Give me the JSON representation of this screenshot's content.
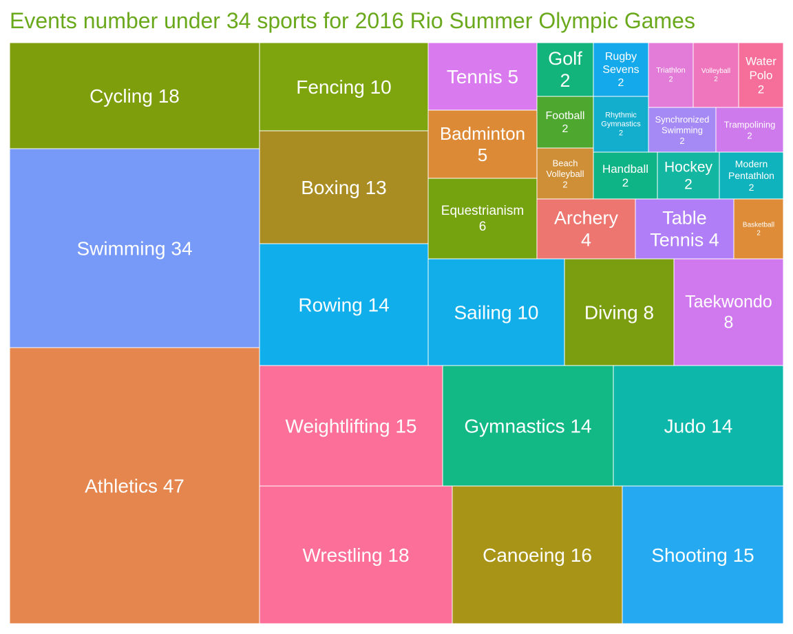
{
  "title": "Events number under 34 sports for 2016 Rio Summer Olympic Games",
  "colors": {
    "title": "#6aa81c",
    "background": "#ffffff",
    "label": "#ffffff"
  },
  "chart_data": {
    "type": "treemap",
    "title": "Events number under 34 sports for 2016 Rio Summer Olympic Games",
    "items": [
      {
        "sport": "Athletics",
        "events": 47,
        "color": "#e4864e"
      },
      {
        "sport": "Swimming",
        "events": 34,
        "color": "#779af8"
      },
      {
        "sport": "Cycling",
        "events": 18,
        "color": "#7e9e0c"
      },
      {
        "sport": "Wrestling",
        "events": 18,
        "color": "#fb6f98"
      },
      {
        "sport": "Canoeing",
        "events": 16,
        "color": "#a89518"
      },
      {
        "sport": "Shooting",
        "events": 15,
        "color": "#25aaf2"
      },
      {
        "sport": "Weightlifting",
        "events": 15,
        "color": "#fb6f98"
      },
      {
        "sport": "Gymnastics",
        "events": 14,
        "color": "#12b985"
      },
      {
        "sport": "Judo",
        "events": 14,
        "color": "#0db8ab"
      },
      {
        "sport": "Rowing",
        "events": 14,
        "color": "#10aeea"
      },
      {
        "sport": "Boxing",
        "events": 13,
        "color": "#a98d23"
      },
      {
        "sport": "Fencing",
        "events": 10,
        "color": "#7ea50e"
      },
      {
        "sport": "Sailing",
        "events": 10,
        "color": "#12aeea"
      },
      {
        "sport": "Diving",
        "events": 8,
        "color": "#7b9d10"
      },
      {
        "sport": "Taekwondo",
        "events": 8,
        "color": "#d078ee"
      },
      {
        "sport": "Equestrianism",
        "events": 6,
        "color": "#75a20f"
      },
      {
        "sport": "Tennis",
        "events": 5,
        "color": "#d97aef"
      },
      {
        "sport": "Badminton",
        "events": 5,
        "color": "#dd8a37"
      },
      {
        "sport": "Archery",
        "events": 4,
        "color": "#ed7671"
      },
      {
        "sport": "Table Tennis",
        "events": 4,
        "color": "#b07ef7"
      },
      {
        "sport": "Golf",
        "events": 2,
        "color": "#12b47c"
      },
      {
        "sport": "Rugby Sevens",
        "events": 2,
        "color": "#13a9ea"
      },
      {
        "sport": "Triathlon",
        "events": 2,
        "color": "#e37bd8"
      },
      {
        "sport": "Volleyball",
        "events": 2,
        "color": "#ef76bc"
      },
      {
        "sport": "Water Polo",
        "events": 2,
        "color": "#f66f9b"
      },
      {
        "sport": "Football",
        "events": 2,
        "color": "#4ea830"
      },
      {
        "sport": "Rhythmic Gymnastics",
        "events": 2,
        "color": "#13adce"
      },
      {
        "sport": "Synchronized Swimming",
        "events": 2,
        "color": "#a58af5"
      },
      {
        "sport": "Trampolining",
        "events": 2,
        "color": "#ce79ec"
      },
      {
        "sport": "Beach Volleyball",
        "events": 2,
        "color": "#cf8f36"
      },
      {
        "sport": "Handball",
        "events": 2,
        "color": "#0fb486"
      },
      {
        "sport": "Hockey",
        "events": 2,
        "color": "#13b6a0"
      },
      {
        "sport": "Modern Pentathlon",
        "events": 2,
        "color": "#0eb3bd"
      },
      {
        "sport": "Basketball",
        "events": 2,
        "color": "#de8c37"
      }
    ]
  }
}
